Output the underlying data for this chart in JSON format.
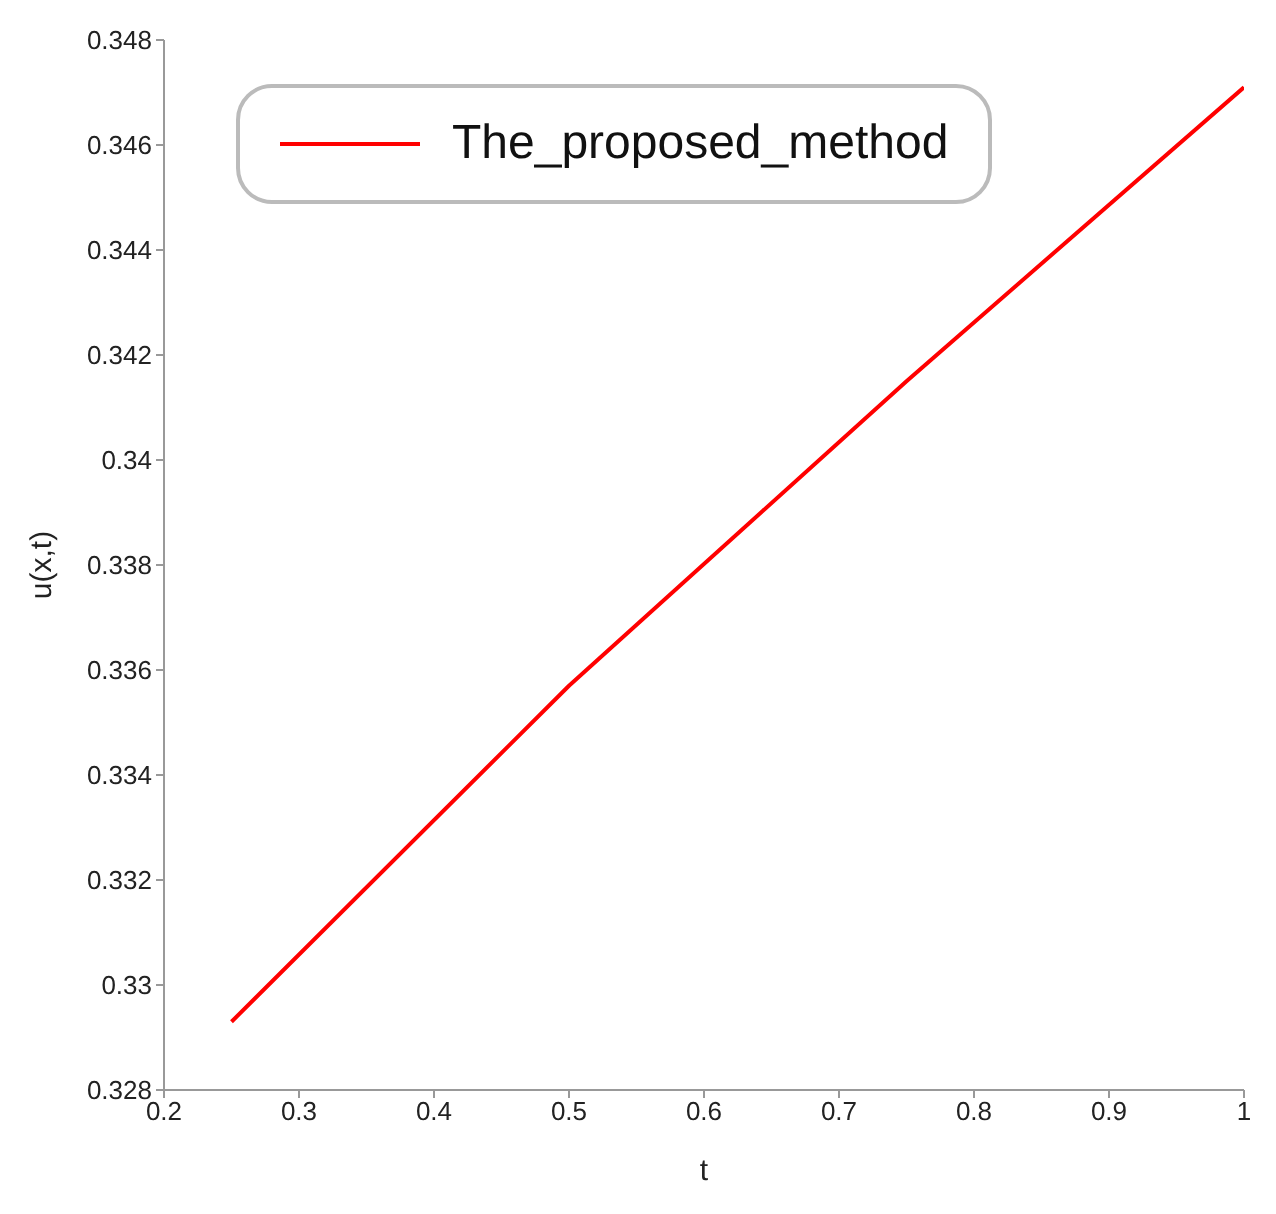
{
  "chart_data": {
    "type": "line",
    "xlabel": "t",
    "ylabel": "u(x,t)",
    "series": [
      {
        "name": "The_proposed_method",
        "color": "#ff0000",
        "x": [
          0.25,
          0.5,
          0.75,
          1
        ],
        "values": [
          0.3293,
          0.3357,
          0.3415,
          0.3471
        ]
      }
    ],
    "xlim": [
      0.2,
      1
    ],
    "xticks": [
      0.2,
      0.3,
      0.4,
      0.5,
      0.6,
      0.7,
      0.8,
      0.9,
      1
    ],
    "ylim": [
      0.328,
      0.348
    ],
    "yticks": [
      0.328,
      0.33,
      0.332,
      0.334,
      0.336,
      0.338,
      0.34,
      0.342,
      0.344,
      0.346,
      0.348
    ],
    "grid": false,
    "legend": "top left",
    "marker": "none",
    "line_style": "solid"
  }
}
